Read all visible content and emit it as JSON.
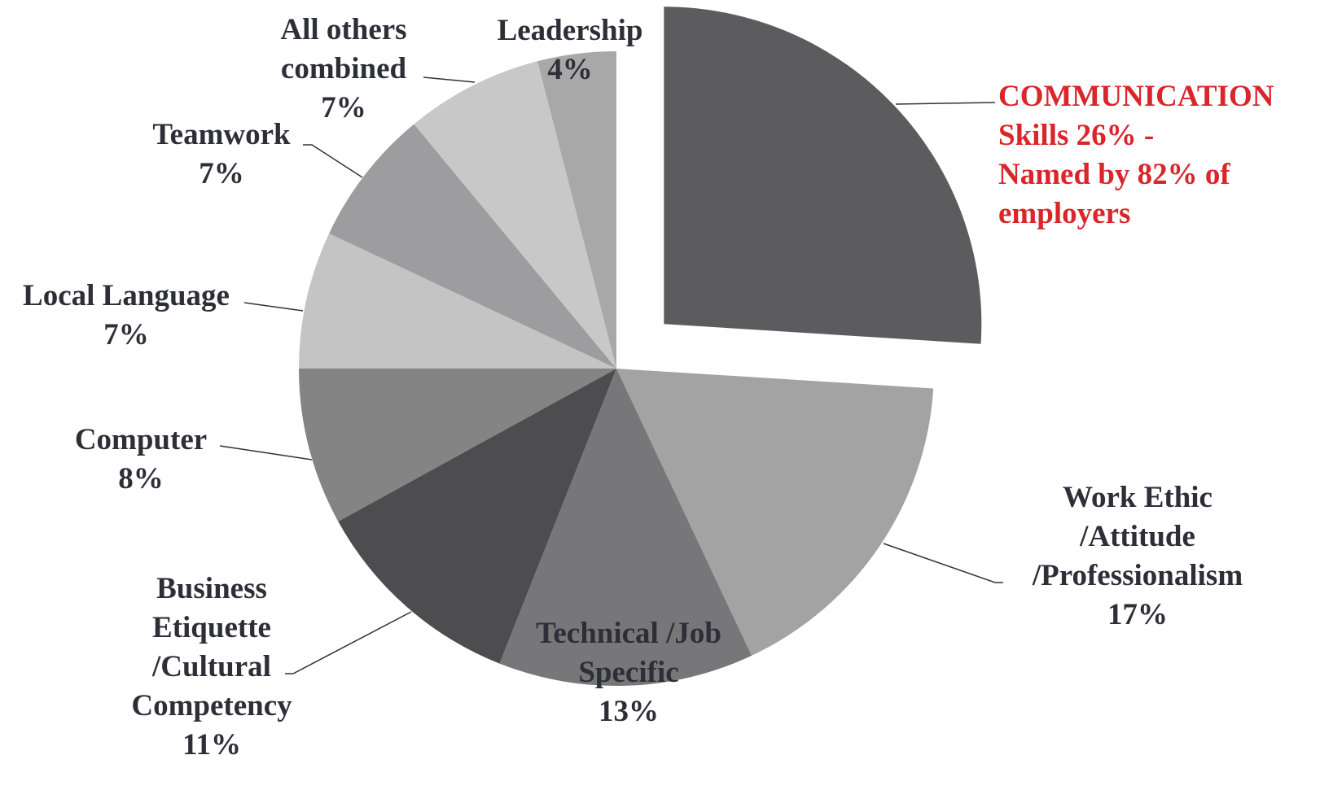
{
  "chart_data": {
    "type": "pie",
    "categories": [
      "COMMUNICATION\nSkills",
      "Work Ethic\n/Attitude\n/Professionalism",
      "Technical /Job\nSpecific",
      "Business\nEtiquette\n/Cultural\nCompetency",
      "Computer",
      "Local Language",
      "Teamwork",
      "All others\ncombined",
      "Leadership"
    ],
    "values": [
      26,
      17,
      13,
      11,
      8,
      7,
      7,
      7,
      4
    ],
    "value_labels": [
      "26%",
      "17%",
      "13%",
      "11%",
      "8%",
      "7%",
      "7%",
      "7%",
      "4%"
    ],
    "colors": [
      "#5c5c5e",
      "#a3a3a3",
      "#777779",
      "#4d4d50",
      "#848484",
      "#c4c4c4",
      "#9d9d9f",
      "#c8c8c8",
      "#a8a8a8"
    ],
    "exploded": [
      0
    ],
    "annotation": "-\nNamed by 82% of\nemployers",
    "highlight_color": "#d9262b"
  }
}
